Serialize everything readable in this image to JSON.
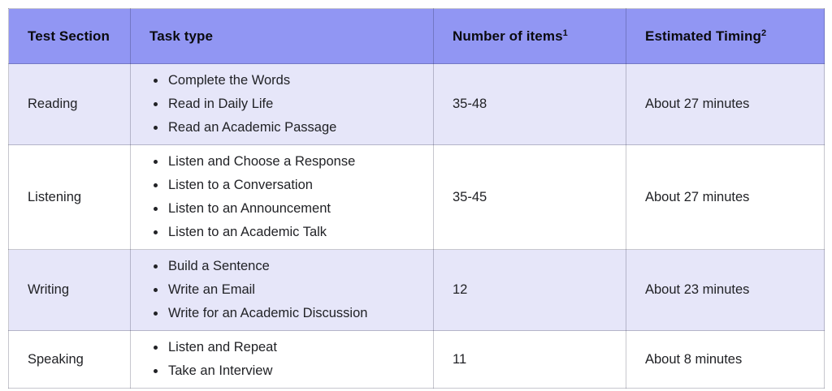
{
  "table": {
    "headers": [
      {
        "label": "Test Section",
        "sup": ""
      },
      {
        "label": "Task type",
        "sup": ""
      },
      {
        "label": "Number of items",
        "sup": "1"
      },
      {
        "label": "Estimated Timing",
        "sup": "2"
      }
    ],
    "rows": [
      {
        "section": "Reading",
        "tasks": [
          "Complete the Words",
          "Read in Daily Life",
          "Read an Academic Passage"
        ],
        "items": "35-48",
        "timing": "About 27 minutes"
      },
      {
        "section": "Listening",
        "tasks": [
          "Listen and Choose a Response",
          "Listen to a Conversation",
          "Listen to an Announcement",
          "Listen to an Academic Talk"
        ],
        "items": "35-45",
        "timing": "About 27 minutes"
      },
      {
        "section": "Writing",
        "tasks": [
          "Build a Sentence",
          "Write an Email",
          "Write for an Academic Discussion"
        ],
        "items": "12",
        "timing": "About 23 minutes"
      },
      {
        "section": "Speaking",
        "tasks": [
          "Listen and Repeat",
          "Take an Interview"
        ],
        "items": "11",
        "timing": "About 8 minutes"
      }
    ],
    "colors": {
      "header_bg": "#9196F3",
      "row_alt_bg": "#E6E6F9",
      "row_bg": "#FFFFFF",
      "header_text": "#0B0B0F",
      "body_text": "#212226"
    }
  }
}
